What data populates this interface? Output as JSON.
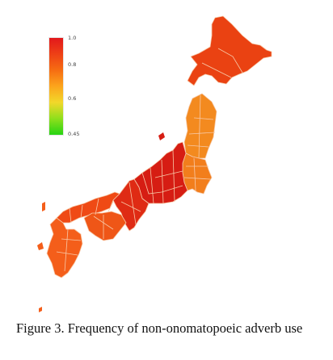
{
  "legend": {
    "gradient": [
      "#e2181c",
      "#ee4016",
      "#f66d12",
      "#fca51c",
      "#f2d82a",
      "#8fdf1c",
      "#27d413"
    ],
    "ticks": [
      "1.0",
      "0.8",
      "0.6",
      "0.45"
    ]
  },
  "map": {
    "colors": {
      "hokkaido": "#ea4212",
      "tohoku": "#f38a1f",
      "kanto": "#f27e1c",
      "chubu": "#d61d13",
      "kinki": "#df2b14",
      "chugoku": "#ef4a15",
      "shikoku": "#ef5617",
      "kyushu": "#f45e1a",
      "border": "#f7c9a8"
    }
  },
  "caption": {
    "text": "Figure 3. Frequency of non-onomatopoeic adverb use"
  }
}
